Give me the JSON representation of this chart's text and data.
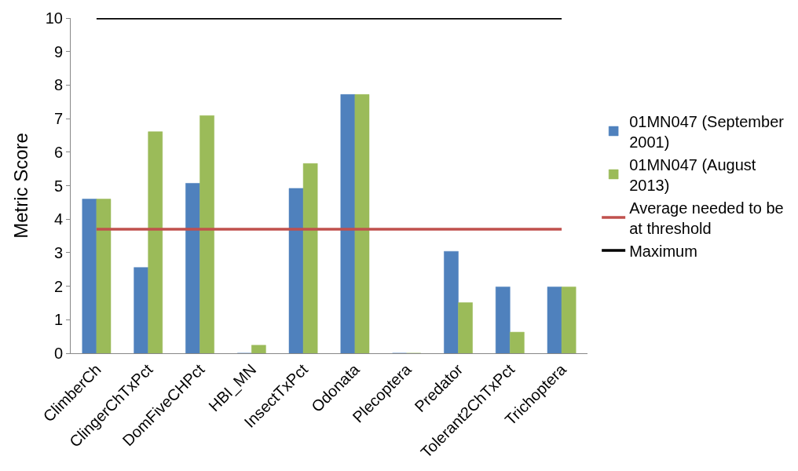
{
  "chart_data": {
    "type": "bar",
    "ylabel": "Metric Score",
    "categories": [
      "ClimberCh",
      "ClingerChTxPct",
      "DomFiveCHPct",
      "HBI_MN",
      "InsectTxPct",
      "Odonata",
      "Plecoptera",
      "Predator",
      "Tolerant2ChTxPct",
      "Trichoptera"
    ],
    "series": [
      {
        "name": "01MN047 (September 2001)",
        "color": "#4f81bd",
        "values": [
          4.6,
          2.56,
          5.07,
          0,
          4.92,
          7.72,
          0,
          3.04,
          1.98,
          1.98
        ]
      },
      {
        "name": "01MN047 (August 2013)",
        "color": "#9bbb59",
        "values": [
          4.6,
          6.61,
          7.09,
          0.24,
          5.66,
          7.72,
          0,
          1.51,
          0.63,
          1.98
        ]
      },
      {
        "name": "Average needed to be at threshold",
        "type": "line",
        "color": "#c0504d",
        "values": [
          3.7,
          3.7,
          3.7,
          3.7,
          3.7,
          3.7,
          3.7,
          3.7,
          3.7,
          3.7
        ]
      },
      {
        "name": "Maximum",
        "type": "line",
        "color": "#000000",
        "values": [
          10,
          10,
          10,
          10,
          10,
          10,
          10,
          10,
          10,
          10
        ]
      }
    ],
    "ylim": [
      0,
      10
    ],
    "yticks": [
      0,
      1,
      2,
      3,
      4,
      5,
      6,
      7,
      8,
      9,
      10
    ],
    "legend": "right",
    "marker": "none"
  }
}
